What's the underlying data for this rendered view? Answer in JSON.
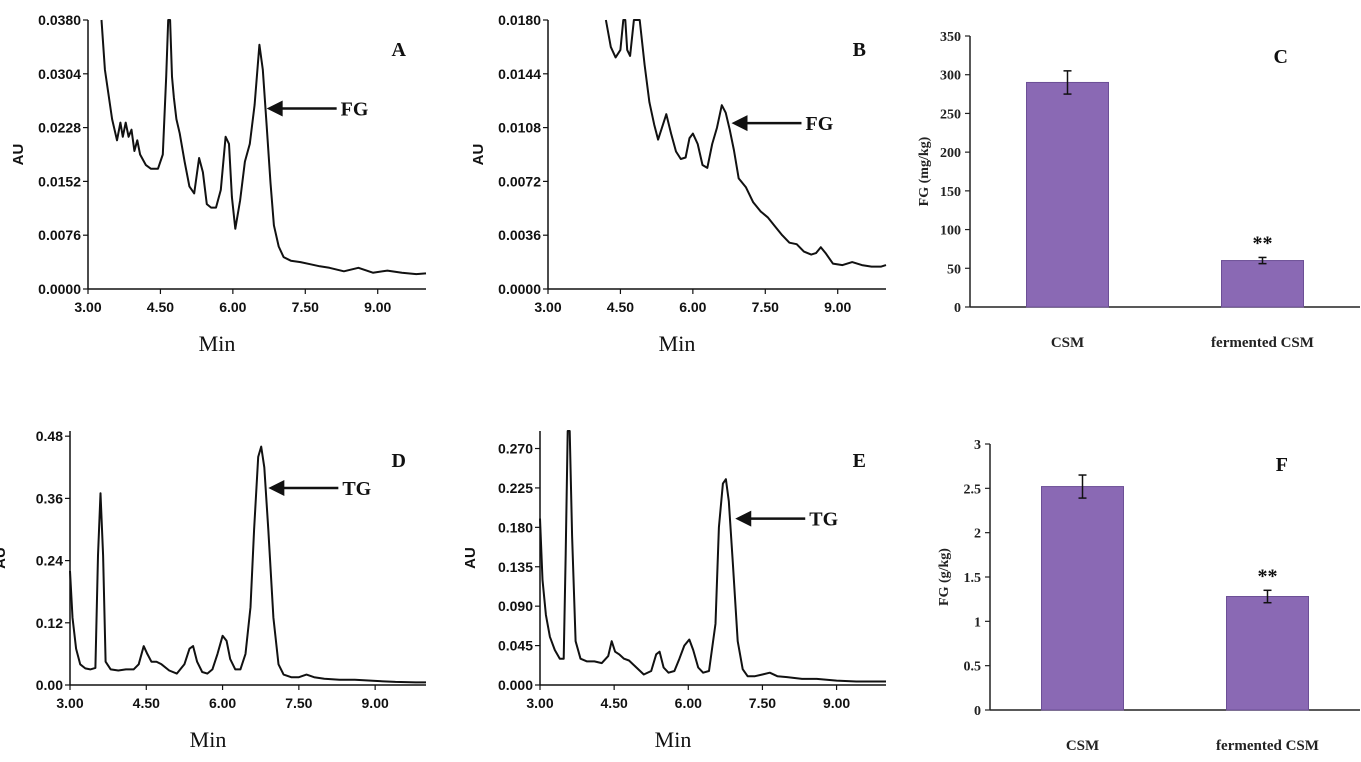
{
  "colors": {
    "bar": "#8a69b4",
    "bar_edge": "#6c4f96",
    "line": "#111111"
  },
  "chart_data": [
    {
      "id": "A",
      "type": "line",
      "letter": "A",
      "xlabel": "Min",
      "ylabel": "AU",
      "xlim": [
        3.0,
        10.0
      ],
      "ylim": [
        0.0,
        0.038
      ],
      "xticks": [
        "3.00",
        "4.50",
        "6.00",
        "7.50",
        "9.00"
      ],
      "yticks": [
        "0.0000",
        "0.0076",
        "0.0152",
        "0.0228",
        "0.0304",
        "0.0380"
      ],
      "annotation": {
        "text": "FG",
        "x": 6.7,
        "y": 0.0255
      },
      "series": [
        {
          "x": [
            3.28,
            3.35,
            3.5,
            3.6,
            3.67,
            3.72,
            3.78,
            3.84,
            3.9,
            3.96,
            4.02,
            4.08,
            4.2,
            4.3,
            4.45,
            4.55,
            4.62,
            4.66,
            4.7,
            4.74,
            4.78,
            4.83,
            4.9,
            5.0,
            5.1,
            5.2,
            5.3,
            5.38,
            5.46,
            5.55,
            5.65,
            5.75,
            5.85,
            5.92,
            5.98,
            6.05,
            6.15,
            6.25,
            6.35,
            6.45,
            6.55,
            6.62,
            6.7,
            6.78,
            6.85,
            6.95,
            7.05,
            7.2,
            7.4,
            7.6,
            7.8,
            8.0,
            8.3,
            8.6,
            8.9,
            9.2,
            9.5,
            9.8,
            10.0
          ],
          "y": [
            0.038,
            0.031,
            0.024,
            0.021,
            0.0235,
            0.0215,
            0.0235,
            0.0215,
            0.0225,
            0.0195,
            0.021,
            0.019,
            0.0175,
            0.017,
            0.017,
            0.019,
            0.03,
            0.04,
            0.04,
            0.03,
            0.027,
            0.024,
            0.022,
            0.018,
            0.0145,
            0.0135,
            0.0185,
            0.0165,
            0.012,
            0.0115,
            0.0115,
            0.014,
            0.0215,
            0.0205,
            0.013,
            0.0085,
            0.0125,
            0.018,
            0.0205,
            0.026,
            0.0345,
            0.031,
            0.023,
            0.015,
            0.009,
            0.006,
            0.0045,
            0.004,
            0.0038,
            0.0035,
            0.0032,
            0.003,
            0.0025,
            0.003,
            0.0023,
            0.0026,
            0.0023,
            0.0021,
            0.0022
          ]
        }
      ]
    },
    {
      "id": "B",
      "type": "line",
      "letter": "B",
      "xlabel": "Min",
      "ylabel": "AU",
      "xlim": [
        3.0,
        10.0
      ],
      "ylim": [
        0.0,
        0.018
      ],
      "xticks": [
        "3.00",
        "4.50",
        "6.00",
        "7.50",
        "9.00"
      ],
      "yticks": [
        "0.0000",
        "0.0036",
        "0.0072",
        "0.0108",
        "0.0144",
        "0.0180"
      ],
      "annotation": {
        "text": "FG",
        "x": 6.8,
        "y": 0.0111
      },
      "series": [
        {
          "x": [
            4.2,
            4.3,
            4.4,
            4.5,
            4.56,
            4.6,
            4.64,
            4.7,
            4.78,
            4.9,
            5.0,
            5.1,
            5.2,
            5.28,
            5.36,
            5.45,
            5.55,
            5.65,
            5.75,
            5.85,
            5.93,
            6.0,
            6.1,
            6.2,
            6.3,
            6.4,
            6.5,
            6.6,
            6.68,
            6.76,
            6.85,
            6.95,
            7.1,
            7.25,
            7.4,
            7.55,
            7.7,
            7.85,
            8.0,
            8.15,
            8.3,
            8.45,
            8.55,
            8.65,
            8.75,
            8.9,
            9.1,
            9.3,
            9.5,
            9.7,
            9.9,
            10.0
          ],
          "y": [
            0.018,
            0.0162,
            0.0155,
            0.016,
            0.0185,
            0.0185,
            0.016,
            0.0156,
            0.0185,
            0.0185,
            0.015,
            0.0125,
            0.011,
            0.01,
            0.0108,
            0.0117,
            0.0104,
            0.0092,
            0.0087,
            0.0088,
            0.0101,
            0.0104,
            0.0097,
            0.0083,
            0.0081,
            0.0097,
            0.0108,
            0.0123,
            0.0118,
            0.0107,
            0.0093,
            0.0074,
            0.0068,
            0.0058,
            0.0052,
            0.0048,
            0.0042,
            0.0036,
            0.0031,
            0.003,
            0.0025,
            0.0023,
            0.0024,
            0.0028,
            0.0024,
            0.0017,
            0.0016,
            0.0018,
            0.0016,
            0.0015,
            0.0015,
            0.0016
          ]
        }
      ]
    },
    {
      "id": "C",
      "type": "bar",
      "letter": "C",
      "categories": [
        "CSM",
        "fermented CSM"
      ],
      "values": [
        290,
        60
      ],
      "errors": [
        15,
        4
      ],
      "significance": [
        "",
        "**"
      ],
      "ylabel": "FG (mg/kg)",
      "ylim": [
        0,
        350
      ],
      "yticks": [
        "0",
        "50",
        "100",
        "150",
        "200",
        "250",
        "300",
        "350"
      ]
    },
    {
      "id": "D",
      "type": "line",
      "letter": "D",
      "xlabel": "Min",
      "ylabel": "AU",
      "xlim": [
        3.0,
        10.0
      ],
      "ylim": [
        0.0,
        0.49
      ],
      "xticks": [
        "3.00",
        "4.50",
        "6.00",
        "7.50",
        "9.00"
      ],
      "yticks": [
        "0.00",
        "0.12",
        "0.24",
        "0.36",
        "0.48"
      ],
      "annotation": {
        "text": "TG",
        "x": 6.9,
        "y": 0.38
      },
      "series": [
        {
          "x": [
            3.0,
            3.05,
            3.12,
            3.2,
            3.3,
            3.4,
            3.5,
            3.55,
            3.6,
            3.65,
            3.7,
            3.8,
            3.95,
            4.1,
            4.25,
            4.35,
            4.45,
            4.52,
            4.6,
            4.7,
            4.8,
            4.95,
            5.1,
            5.25,
            5.35,
            5.42,
            5.5,
            5.6,
            5.7,
            5.8,
            5.9,
            6.0,
            6.08,
            6.15,
            6.25,
            6.35,
            6.45,
            6.55,
            6.62,
            6.7,
            6.76,
            6.82,
            6.9,
            7.0,
            7.1,
            7.2,
            7.35,
            7.5,
            7.65,
            7.8,
            8.0,
            8.3,
            8.6,
            9.0,
            9.4,
            9.8,
            10.0
          ],
          "y": [
            0.22,
            0.13,
            0.07,
            0.04,
            0.032,
            0.03,
            0.033,
            0.25,
            0.37,
            0.25,
            0.045,
            0.03,
            0.028,
            0.03,
            0.03,
            0.04,
            0.075,
            0.06,
            0.045,
            0.045,
            0.04,
            0.028,
            0.022,
            0.04,
            0.07,
            0.075,
            0.045,
            0.025,
            0.022,
            0.03,
            0.06,
            0.095,
            0.085,
            0.05,
            0.03,
            0.03,
            0.06,
            0.15,
            0.3,
            0.44,
            0.46,
            0.42,
            0.3,
            0.13,
            0.04,
            0.02,
            0.015,
            0.015,
            0.02,
            0.015,
            0.012,
            0.01,
            0.01,
            0.008,
            0.006,
            0.005,
            0.005
          ]
        }
      ]
    },
    {
      "id": "E",
      "type": "line",
      "letter": "E",
      "xlabel": "Min",
      "ylabel": "AU",
      "xlim": [
        3.0,
        10.0
      ],
      "ylim": [
        0.0,
        0.29
      ],
      "xticks": [
        "3.00",
        "4.50",
        "6.00",
        "7.50",
        "9.00"
      ],
      "yticks": [
        "0.000",
        "0.045",
        "0.090",
        "0.135",
        "0.180",
        "0.225",
        "0.270"
      ],
      "annotation": {
        "text": "TG",
        "x": 6.95,
        "y": 0.19
      },
      "series": [
        {
          "x": [
            3.0,
            3.05,
            3.12,
            3.2,
            3.3,
            3.4,
            3.48,
            3.52,
            3.56,
            3.6,
            3.65,
            3.72,
            3.82,
            3.95,
            4.1,
            4.25,
            4.38,
            4.45,
            4.52,
            4.6,
            4.7,
            4.8,
            4.95,
            5.1,
            5.25,
            5.35,
            5.42,
            5.5,
            5.6,
            5.72,
            5.82,
            5.92,
            6.02,
            6.1,
            6.2,
            6.3,
            6.42,
            6.55,
            6.62,
            6.7,
            6.76,
            6.82,
            6.9,
            7.0,
            7.1,
            7.2,
            7.35,
            7.5,
            7.65,
            7.8,
            8.0,
            8.3,
            8.6,
            9.0,
            9.4,
            9.8,
            10.0
          ],
          "y": [
            0.19,
            0.12,
            0.08,
            0.055,
            0.04,
            0.03,
            0.03,
            0.15,
            0.29,
            0.29,
            0.17,
            0.05,
            0.03,
            0.027,
            0.027,
            0.025,
            0.033,
            0.05,
            0.038,
            0.035,
            0.03,
            0.028,
            0.02,
            0.012,
            0.016,
            0.035,
            0.038,
            0.02,
            0.014,
            0.016,
            0.03,
            0.045,
            0.052,
            0.04,
            0.02,
            0.014,
            0.016,
            0.07,
            0.18,
            0.23,
            0.235,
            0.21,
            0.14,
            0.05,
            0.018,
            0.01,
            0.01,
            0.012,
            0.014,
            0.01,
            0.009,
            0.007,
            0.007,
            0.005,
            0.004,
            0.004,
            0.004
          ]
        }
      ]
    },
    {
      "id": "F",
      "type": "bar",
      "letter": "F",
      "categories": [
        "CSM",
        "fermented CSM"
      ],
      "values": [
        2.52,
        1.28
      ],
      "errors": [
        0.13,
        0.07
      ],
      "significance": [
        "",
        "**"
      ],
      "ylabel": "FG (g/kg)",
      "ylim": [
        0,
        3
      ],
      "yticks": [
        "0",
        "0.5",
        "1",
        "1.5",
        "2",
        "2.5",
        "3"
      ]
    }
  ]
}
